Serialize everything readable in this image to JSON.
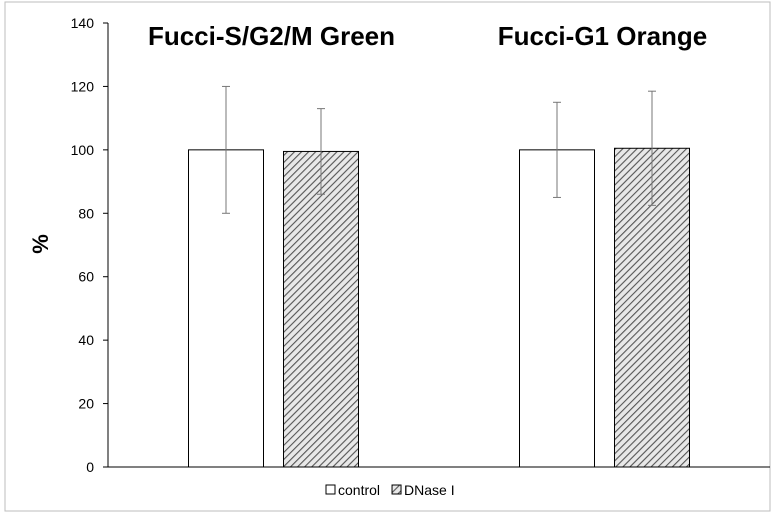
{
  "chart_data": {
    "type": "bar",
    "ylabel": "%",
    "ylim": [
      0,
      140
    ],
    "yticks": [
      0,
      20,
      40,
      60,
      80,
      100,
      120,
      140
    ],
    "grid": false,
    "legend_position": "bottom-center",
    "categories": [
      "Fucci-S/G2/M Green",
      "Fucci-G1 Orange"
    ],
    "series": [
      {
        "name": "control",
        "values": [
          100,
          100
        ],
        "errors": [
          20,
          15
        ],
        "fill": "white"
      },
      {
        "name": "DNase I",
        "values": [
          99.5,
          100.5
        ],
        "errors": [
          13.5,
          18
        ],
        "fill": "diagonal-hatch"
      }
    ]
  },
  "colors": {
    "bar_stroke": "#000000",
    "hatch_line": "#555555",
    "hatch_bg": "#e8e8e8",
    "error_bar": "#777777",
    "axis": "#000000",
    "frame": "#bdbdbd"
  }
}
